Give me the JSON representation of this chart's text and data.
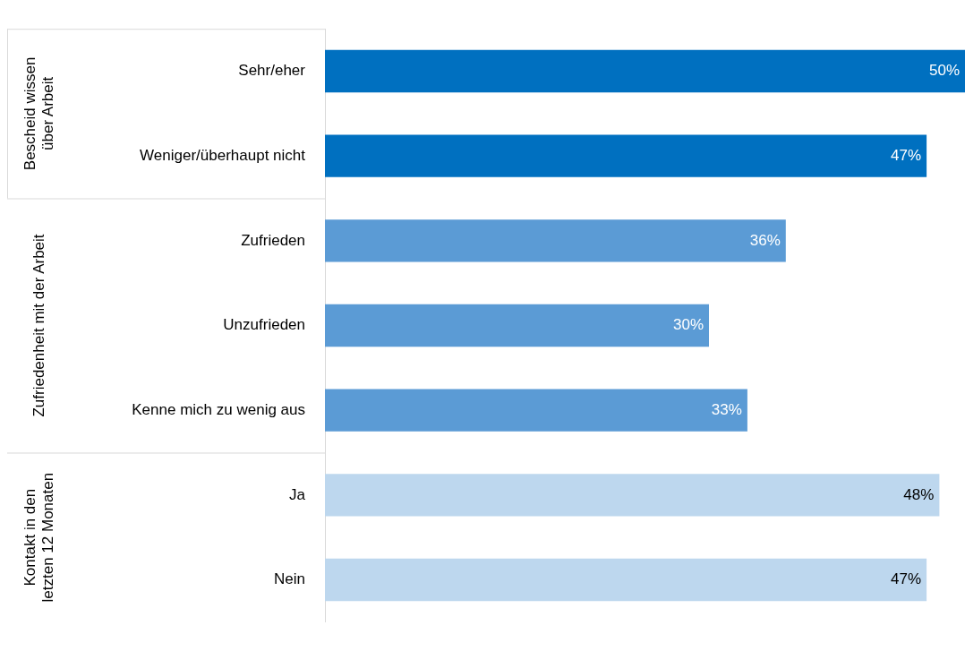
{
  "chart_data": {
    "type": "bar",
    "orientation": "horizontal",
    "legend": false,
    "categories": [
      "Sehr/eher",
      "Weniger/überhaupt nicht",
      "Zufrieden",
      "Unzufrieden",
      "Kenne mich zu wenig aus",
      "Ja",
      "Nein"
    ],
    "annotations": [
      "Bescheid wissen über Arbeit",
      "Zufriedenheit mit der Arbeit",
      "Kontakt in den letzten 12 Monaten"
    ],
    "series": [
      {
        "color": "#0070c0",
        "values": [
          50,
          47,
          null,
          null,
          null,
          null,
          null
        ],
        "value_labels": [
          "50%",
          "47%",
          null,
          null,
          null,
          null,
          null
        ]
      },
      {
        "color": "#5b9bd5",
        "values": [
          null,
          null,
          36,
          30,
          33,
          null,
          null
        ],
        "value_labels": [
          null,
          null,
          "36%",
          "30%",
          "33%",
          null,
          null
        ]
      },
      {
        "color": "#bdd7ee",
        "values": [
          null,
          null,
          null,
          null,
          null,
          48,
          47
        ],
        "value_labels": [
          null,
          null,
          null,
          null,
          null,
          "48%",
          "47%"
        ]
      }
    ]
  }
}
